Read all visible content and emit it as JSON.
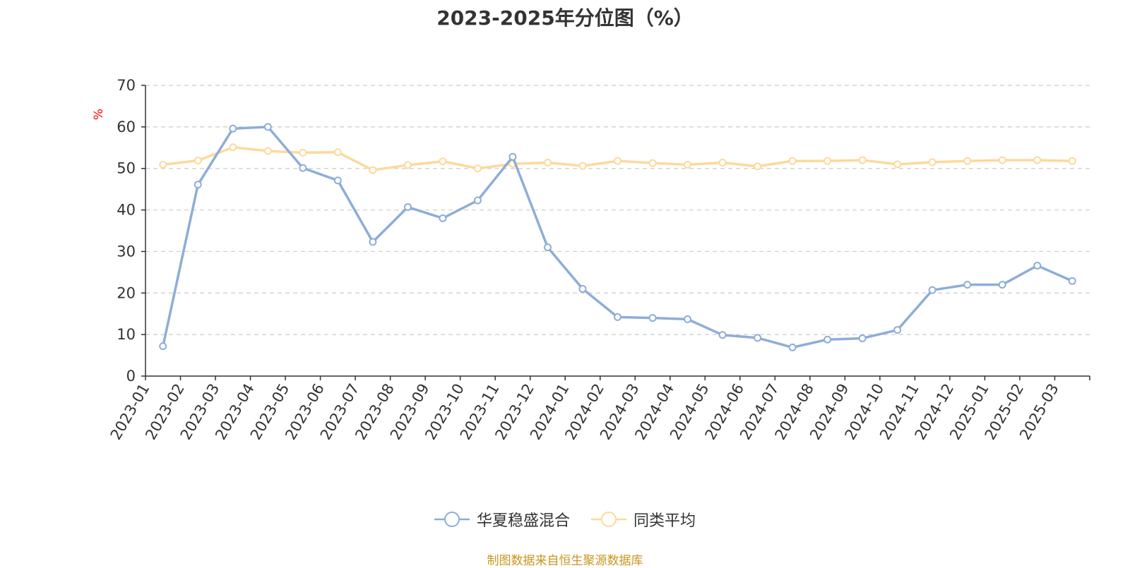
{
  "chart_data": {
    "type": "line",
    "title": "2023-2025年分位图（%）",
    "ylabel": "%",
    "xlabel": "",
    "ylim": [
      0,
      70
    ],
    "yticks": [
      0,
      10,
      20,
      30,
      40,
      50,
      60,
      70
    ],
    "grid": true,
    "legend_position": "bottom",
    "categories": [
      "2023-01",
      "2023-02",
      "2023-03",
      "2023-04",
      "2023-05",
      "2023-06",
      "2023-07",
      "2023-08",
      "2023-09",
      "2023-10",
      "2023-11",
      "2023-12",
      "2024-01",
      "2024-02",
      "2024-03",
      "2024-04",
      "2024-05",
      "2024-06",
      "2024-07",
      "2024-08",
      "2024-09",
      "2024-10",
      "2024-11",
      "2024-12",
      "2025-01",
      "2025-02",
      "2025-03"
    ],
    "series": [
      {
        "name": "华夏稳盛混合",
        "color": "#8eadd8",
        "values": [
          7.2,
          46.1,
          59.6,
          60.0,
          50.1,
          47.1,
          32.3,
          40.7,
          38.0,
          42.3,
          52.8,
          31.0,
          21.0,
          14.2,
          14.0,
          13.7,
          9.9,
          9.2,
          6.9,
          8.8,
          9.1,
          11.1,
          20.7,
          22.0,
          22.0,
          26.6,
          22.9
        ]
      },
      {
        "name": "同类平均",
        "color": "#fdd99b",
        "values": [
          50.9,
          51.9,
          55.1,
          54.2,
          53.8,
          53.9,
          49.6,
          50.8,
          51.7,
          50.0,
          51.1,
          51.4,
          50.6,
          51.8,
          51.3,
          50.9,
          51.4,
          50.5,
          51.8,
          51.8,
          52.0,
          51.0,
          51.5,
          51.8,
          52.0,
          52.0,
          51.8
        ]
      }
    ]
  },
  "footer": {
    "source": "制图数据来自恒生聚源数据库"
  }
}
